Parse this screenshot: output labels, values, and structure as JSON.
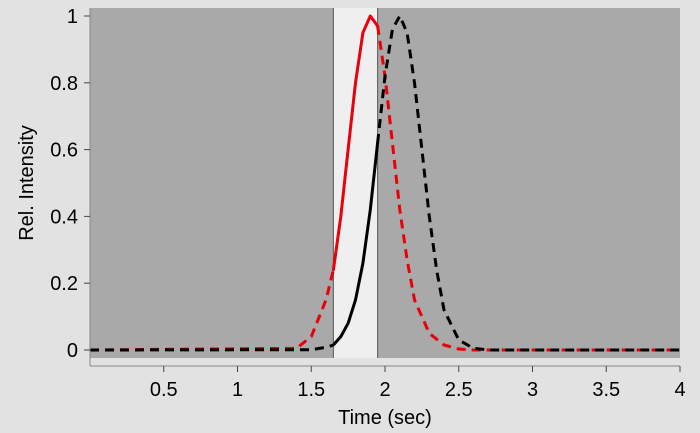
{
  "chart_data": {
    "type": "line",
    "title": "",
    "xlabel": "Time (sec)",
    "ylabel": "Rel. Intensity",
    "xlim": [
      0,
      4
    ],
    "ylim": [
      -0.02,
      1.02
    ],
    "x_ticks": [
      0.5,
      1,
      1.5,
      2,
      2.5,
      3,
      3.5,
      4
    ],
    "x_tick_labels": [
      "0.5",
      "1",
      "1.5",
      "2",
      "2.5",
      "3",
      "3.5",
      "4"
    ],
    "y_ticks": [
      0,
      0.2,
      0.4,
      0.6,
      0.8,
      1
    ],
    "y_tick_labels": [
      "0",
      "0.2",
      "0.4",
      "0.6",
      "0.8",
      "1"
    ],
    "grid": false,
    "legend": "none",
    "highlight_window": {
      "x_start": 1.65,
      "x_end": 1.95
    },
    "colors": {
      "page_background": "#e2e2e2",
      "plot_background": "#a9a9a9",
      "window_fill": "#efefef",
      "red_series": "#e8000b",
      "black_series": "#000000"
    },
    "series": [
      {
        "color": "#e8000b",
        "peak_x": 1.9,
        "peak_y": 1.0,
        "points": [
          [
            0,
            0
          ],
          [
            1.4,
            0.005
          ],
          [
            1.5,
            0.04
          ],
          [
            1.6,
            0.15
          ],
          [
            1.65,
            0.24
          ],
          [
            1.7,
            0.4
          ],
          [
            1.75,
            0.6
          ],
          [
            1.8,
            0.8
          ],
          [
            1.85,
            0.95
          ],
          [
            1.9,
            1.0
          ],
          [
            1.95,
            0.97
          ],
          [
            2.0,
            0.82
          ],
          [
            2.05,
            0.62
          ],
          [
            2.1,
            0.42
          ],
          [
            2.15,
            0.27
          ],
          [
            2.2,
            0.15
          ],
          [
            2.3,
            0.05
          ],
          [
            2.4,
            0.015
          ],
          [
            2.5,
            0.003
          ],
          [
            2.6,
            0
          ],
          [
            4,
            0
          ]
        ],
        "solid_range": [
          1.65,
          1.95
        ],
        "dashed_elsewhere": true
      },
      {
        "color": "#000000",
        "peak_x": 2.1,
        "peak_y": 1.0,
        "points": [
          [
            0,
            0
          ],
          [
            1.5,
            0.001
          ],
          [
            1.6,
            0.008
          ],
          [
            1.65,
            0.015
          ],
          [
            1.7,
            0.04
          ],
          [
            1.75,
            0.08
          ],
          [
            1.8,
            0.15
          ],
          [
            1.85,
            0.26
          ],
          [
            1.9,
            0.42
          ],
          [
            1.95,
            0.62
          ],
          [
            2.0,
            0.82
          ],
          [
            2.05,
            0.96
          ],
          [
            2.1,
            1.0
          ],
          [
            2.15,
            0.95
          ],
          [
            2.2,
            0.8
          ],
          [
            2.25,
            0.6
          ],
          [
            2.3,
            0.4
          ],
          [
            2.35,
            0.24
          ],
          [
            2.4,
            0.12
          ],
          [
            2.5,
            0.03
          ],
          [
            2.6,
            0.005
          ],
          [
            2.7,
            0
          ],
          [
            4,
            0
          ]
        ],
        "solid_range": [
          1.65,
          1.95
        ],
        "dashed_elsewhere": true
      }
    ]
  }
}
